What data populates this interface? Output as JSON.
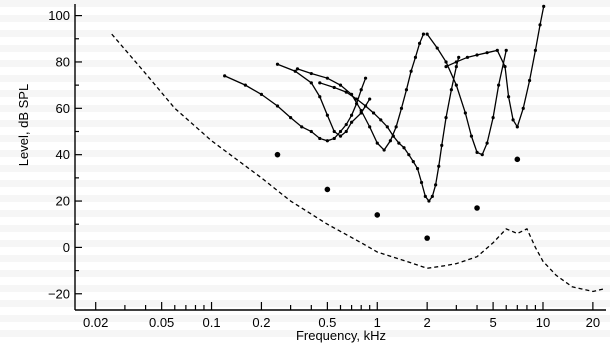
{
  "chart_data": {
    "type": "line",
    "title": "",
    "xlabel": "Frequency, kHz",
    "ylabel": "Level, dB SPL",
    "xscale": "log",
    "xlim": [
      0.015,
      24
    ],
    "ylim": [
      -27,
      105
    ],
    "xticks": [
      0.02,
      0.05,
      0.1,
      0.2,
      0.5,
      1,
      2,
      5,
      10,
      20
    ],
    "xtick_labels": [
      "0.02",
      "0.05",
      "0.1",
      "0.2",
      "0.5",
      "1",
      "2",
      "5",
      "10",
      "20"
    ],
    "yticks": [
      -20,
      0,
      20,
      40,
      60,
      80,
      100
    ],
    "ytick_labels": [
      "−20",
      "0",
      "20",
      "40",
      "60",
      "80",
      "100"
    ],
    "grid": false,
    "legend": "none",
    "colors": {
      "series": "#000000",
      "background": "#ffffff"
    },
    "series": [
      {
        "style": "dashed",
        "x": [
          0.025,
          0.04,
          0.06,
          0.1,
          0.2,
          0.3,
          0.5,
          0.8,
          1,
          1.5,
          2,
          2.5,
          3,
          4,
          5,
          6,
          7,
          8,
          9,
          10,
          12,
          15,
          20,
          23
        ],
        "y": [
          92,
          75,
          60,
          46,
          30,
          20,
          10,
          2,
          -2,
          -6,
          -9,
          -8,
          -7,
          -4,
          2,
          8,
          6,
          8,
          0,
          -6,
          -12,
          -17,
          -19,
          -18
        ]
      },
      {
        "style": "solid-markers",
        "x": [
          0.12,
          0.16,
          0.2,
          0.25,
          0.3,
          0.35,
          0.4,
          0.45,
          0.5,
          0.55,
          0.6,
          0.65,
          0.7,
          0.75,
          0.8,
          0.85
        ],
        "y": [
          74,
          70,
          66,
          61,
          56,
          52,
          50,
          47,
          46,
          47,
          50,
          53,
          57,
          62,
          68,
          73
        ]
      },
      {
        "style": "solid-markers",
        "x": [
          0.25,
          0.32,
          0.4,
          0.45,
          0.5,
          0.55,
          0.6,
          0.65,
          0.7,
          0.8,
          0.9
        ],
        "y": [
          79,
          76,
          71,
          65,
          57,
          50,
          48,
          50,
          54,
          58,
          64
        ]
      },
      {
        "style": "solid-markers",
        "x": [
          0.33,
          0.4,
          0.5,
          0.6,
          0.7,
          0.8,
          0.9,
          1,
          1.1,
          1.2,
          1.3,
          1.4,
          1.5,
          1.6,
          1.7,
          1.8,
          1.9
        ],
        "y": [
          77,
          75,
          73,
          70,
          66,
          59,
          52,
          45,
          42,
          46,
          52,
          60,
          68,
          76,
          82,
          88,
          92
        ]
      },
      {
        "style": "solid-markers",
        "x": [
          0.45,
          0.55,
          0.65,
          0.75,
          0.85,
          0.95,
          1.05,
          1.15,
          1.25,
          1.35,
          1.45,
          1.55,
          1.65,
          1.75,
          1.85,
          1.95,
          2.05,
          2.15,
          2.25,
          2.35,
          2.45,
          2.6,
          2.8,
          3.0,
          3.1
        ],
        "y": [
          71,
          69,
          67,
          64,
          61,
          58,
          55,
          52,
          48,
          45,
          43,
          40,
          37,
          34,
          28,
          22,
          20,
          22,
          27,
          35,
          44,
          56,
          68,
          78,
          82
        ]
      },
      {
        "style": "solid-markers",
        "x": [
          2.0,
          2.3,
          2.6,
          3.0,
          3.4,
          3.7,
          4.0,
          4.3,
          4.6,
          5.0,
          5.4,
          6.0
        ],
        "y": [
          92,
          86,
          80,
          70,
          58,
          48,
          41,
          40,
          45,
          56,
          70,
          85
        ]
      },
      {
        "style": "solid-markers",
        "x": [
          2.6,
          3.0,
          3.5,
          4.0,
          4.6,
          5.3,
          5.9,
          6.2,
          6.6,
          7.0,
          7.6,
          8.3,
          9.0,
          9.6,
          10.1
        ],
        "y": [
          78,
          80,
          82,
          83,
          84,
          85,
          78,
          65,
          55,
          52,
          60,
          72,
          85,
          96,
          104
        ]
      },
      {
        "style": "points",
        "x": [
          0.25,
          0.5,
          1.0,
          2.0,
          4.0,
          7.0
        ],
        "y": [
          40,
          25,
          14,
          4,
          17,
          38
        ]
      }
    ]
  }
}
